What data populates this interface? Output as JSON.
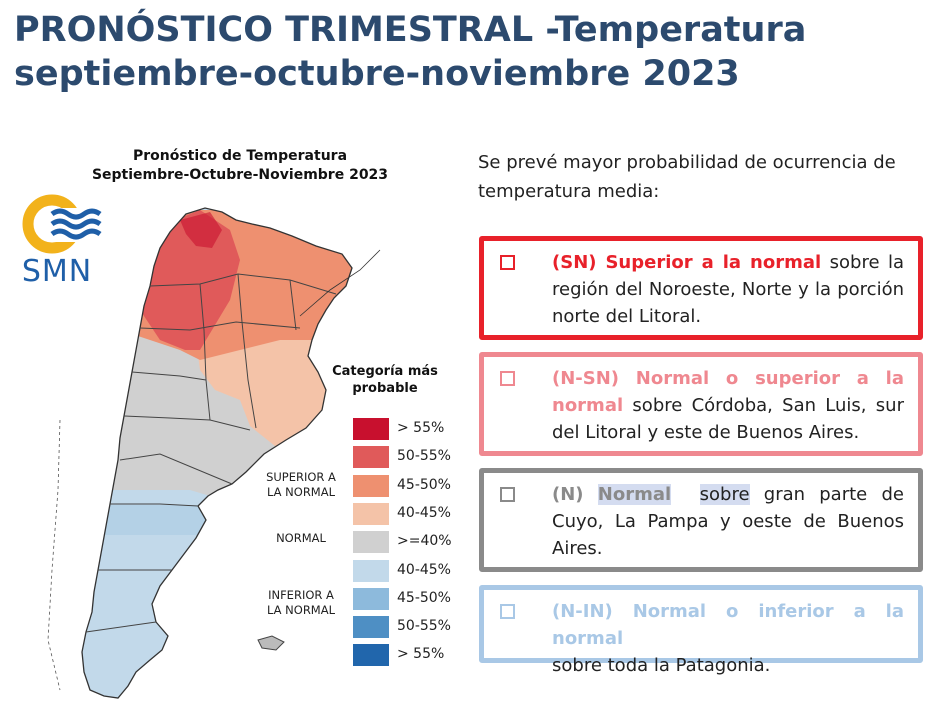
{
  "header": {
    "title_line1": "PRONÓSTICO TRIMESTRAL -Temperatura",
    "title_line2": "septiembre-octubre-noviembre 2023"
  },
  "map": {
    "title_line1": "Pronóstico de Temperatura",
    "title_line2": "Septiembre-Octubre-Noviembre 2023",
    "logo_text": "SMN",
    "colors": {
      "sup_55": "#c8102e",
      "sup_50_55": "#e05a5a",
      "sup_45_50": "#ee9070",
      "sup_40_45": "#f4c3a8",
      "normal": "#d0d0d0",
      "inf_40_45": "#c2d9ea",
      "inf_45_50": "#8dbadc",
      "inf_50_55": "#4e8fc4",
      "inf_55": "#2166ac"
    }
  },
  "legend": {
    "title_line1": "Categoría más",
    "title_line2": "probable",
    "items": [
      {
        "label": "> 55%",
        "color": "#c8102e"
      },
      {
        "label": "50-55%",
        "color": "#e05a5a"
      },
      {
        "label": "45-50%",
        "color": "#ee9070"
      },
      {
        "label": "40-45%",
        "color": "#f4c3a8"
      },
      {
        "label": ">=40%",
        "color": "#d0d0d0"
      },
      {
        "label": "40-45%",
        "color": "#c2d9ea"
      },
      {
        "label": "45-50%",
        "color": "#8dbadc"
      },
      {
        "label": "50-55%",
        "color": "#4e8fc4"
      },
      {
        "label": "> 55%",
        "color": "#2166ac"
      }
    ],
    "categories": {
      "superior_line1": "SUPERIOR A",
      "superior_line2": "LA NORMAL",
      "normal": "NORMAL",
      "inferior_line1": "INFERIOR A",
      "inferior_line2": "LA NORMAL"
    }
  },
  "description": {
    "intro": "Se prevé mayor probabilidad de ocurrencia de temperatura media:",
    "boxes": [
      {
        "id": "sn",
        "highlight": "(SN) Superior a la normal",
        "text": "sobre la región del Noroeste, Norte y la porción norte del Litoral.",
        "border_color": "#e8212a",
        "highlight_color": "#e8212a"
      },
      {
        "id": "nsn",
        "highlight": "(N-SN) Normal o superior a la normal",
        "text": "sobre Córdoba, San Luis, sur del Litoral y este de Buenos Aires.",
        "border_color": "#ef8890",
        "highlight_color": "#ef8890"
      },
      {
        "id": "n",
        "highlight_prefix": "(N)",
        "highlight_word": "Normal",
        "connector": "sobre",
        "text": "gran parte de Cuyo, La Pampa y oeste de Buenos Aires.",
        "border_color": "#8a8a8a",
        "highlight_color": "#8a8a8a"
      },
      {
        "id": "nin",
        "highlight": "(N-IN) Normal o inferior  a la normal",
        "text": "sobre toda la Patagonia.",
        "border_color": "#a9c8e6",
        "highlight_color": "#a9c8e6"
      }
    ]
  }
}
